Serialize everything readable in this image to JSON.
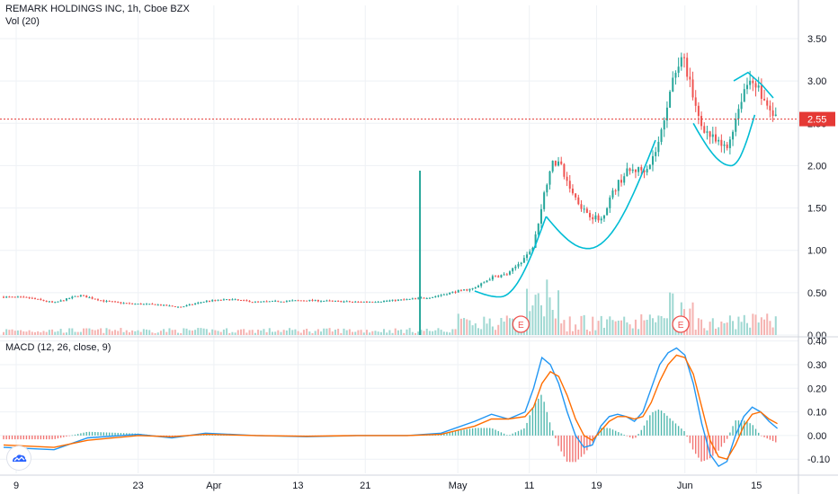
{
  "header": {
    "symbol_line": "REMARK HOLDINGS INC, 1h, Cboe BZX",
    "volume_label": "Vol (20)",
    "macd_label": "MACD (12, 26, close, 9)"
  },
  "colors": {
    "up": "#26a69a",
    "down": "#ef5350",
    "volume_up": "#9fd8d2",
    "volume_down": "#f5b3b1",
    "macd_line": "#2196f3",
    "signal_line": "#ff6d00",
    "pattern": "#00bcd4",
    "price_line": "#e53935",
    "grid": "#eef1f5",
    "axis_text": "#131722"
  },
  "chart_data": [
    {
      "type": "candlestick",
      "title": "REMARK HOLDINGS INC, 1h, Cboe BZX",
      "y_ticks": [
        "3.50",
        "3.00",
        "2.50",
        "2.00",
        "1.50",
        "1.00",
        "0.50",
        "0.00"
      ],
      "ylim": [
        0,
        3.85
      ],
      "current_price": "2.55",
      "x_ticks": [
        "9",
        "23",
        "Apr",
        "13",
        "21",
        "May",
        "11",
        "19",
        "Jun",
        "15"
      ],
      "earnings_markers": [
        "E",
        "E"
      ],
      "daily_closes": [
        {
          "t": 0,
          "c": 0.45
        },
        {
          "t": 3,
          "c": 0.44
        },
        {
          "t": 6,
          "c": 0.38
        },
        {
          "t": 9,
          "c": 0.47
        },
        {
          "t": 12,
          "c": 0.4
        },
        {
          "t": 15,
          "c": 0.37
        },
        {
          "t": 18,
          "c": 0.36
        },
        {
          "t": 21,
          "c": 0.33
        },
        {
          "t": 24,
          "c": 0.4
        },
        {
          "t": 27,
          "c": 0.42
        },
        {
          "t": 30,
          "c": 0.39
        },
        {
          "t": 33,
          "c": 0.4
        },
        {
          "t": 36,
          "c": 0.41
        },
        {
          "t": 39,
          "c": 0.4
        },
        {
          "t": 42,
          "c": 0.39
        },
        {
          "t": 45,
          "c": 0.4
        },
        {
          "t": 48,
          "c": 0.42
        },
        {
          "t": 51,
          "c": 0.45
        },
        {
          "t": 54,
          "c": 0.52
        },
        {
          "t": 56,
          "c": 0.55
        },
        {
          "t": 58,
          "c": 0.68
        },
        {
          "t": 60,
          "c": 0.72
        },
        {
          "t": 62,
          "c": 0.92
        },
        {
          "t": 63,
          "c": 1.05
        },
        {
          "t": 64,
          "c": 1.55
        },
        {
          "t": 65,
          "c": 2.0
        },
        {
          "t": 66,
          "c": 2.05
        },
        {
          "t": 67,
          "c": 1.8
        },
        {
          "t": 68,
          "c": 1.62
        },
        {
          "t": 69,
          "c": 1.48
        },
        {
          "t": 70,
          "c": 1.4
        },
        {
          "t": 71,
          "c": 1.35
        },
        {
          "t": 72,
          "c": 1.6
        },
        {
          "t": 73,
          "c": 1.78
        },
        {
          "t": 74,
          "c": 1.92
        },
        {
          "t": 75,
          "c": 1.95
        },
        {
          "t": 76,
          "c": 1.95
        },
        {
          "t": 77,
          "c": 2.05
        },
        {
          "t": 78,
          "c": 2.3
        },
        {
          "t": 79,
          "c": 2.8
        },
        {
          "t": 80,
          "c": 3.2
        },
        {
          "t": 81,
          "c": 3.25
        },
        {
          "t": 82,
          "c": 2.75
        },
        {
          "t": 83,
          "c": 2.48
        },
        {
          "t": 84,
          "c": 2.35
        },
        {
          "t": 85,
          "c": 2.25
        },
        {
          "t": 86,
          "c": 2.2
        },
        {
          "t": 87,
          "c": 2.55
        },
        {
          "t": 88,
          "c": 2.9
        },
        {
          "t": 89,
          "c": 3.05
        },
        {
          "t": 90,
          "c": 2.85
        },
        {
          "t": 91,
          "c": 2.65
        },
        {
          "t": 92,
          "c": 2.55
        }
      ]
    },
    {
      "type": "line",
      "title": "MACD (12, 26, close, 9)",
      "y_ticks": [
        "0.40",
        "0.30",
        "0.20",
        "0.10",
        "0.00",
        "-0.10"
      ],
      "ylim": [
        -0.16,
        0.41
      ],
      "series": [
        {
          "name": "MACD",
          "points": [
            {
              "t": 0,
              "v": -0.05
            },
            {
              "t": 6,
              "v": -0.06
            },
            {
              "t": 10,
              "v": -0.01
            },
            {
              "t": 16,
              "v": 0.005
            },
            {
              "t": 20,
              "v": -0.01
            },
            {
              "t": 24,
              "v": 0.01
            },
            {
              "t": 30,
              "v": 0.0
            },
            {
              "t": 36,
              "v": -0.005
            },
            {
              "t": 42,
              "v": 0.0
            },
            {
              "t": 48,
              "v": 0.0
            },
            {
              "t": 52,
              "v": 0.01
            },
            {
              "t": 56,
              "v": 0.06
            },
            {
              "t": 58,
              "v": 0.09
            },
            {
              "t": 60,
              "v": 0.07
            },
            {
              "t": 62,
              "v": 0.1
            },
            {
              "t": 63,
              "v": 0.2
            },
            {
              "t": 64,
              "v": 0.33
            },
            {
              "t": 65,
              "v": 0.3
            },
            {
              "t": 66,
              "v": 0.22
            },
            {
              "t": 67,
              "v": 0.1
            },
            {
              "t": 68,
              "v": 0.0
            },
            {
              "t": 69,
              "v": -0.05
            },
            {
              "t": 70,
              "v": -0.04
            },
            {
              "t": 71,
              "v": 0.04
            },
            {
              "t": 72,
              "v": 0.08
            },
            {
              "t": 73,
              "v": 0.09
            },
            {
              "t": 74,
              "v": 0.08
            },
            {
              "t": 75,
              "v": 0.06
            },
            {
              "t": 76,
              "v": 0.1
            },
            {
              "t": 77,
              "v": 0.2
            },
            {
              "t": 78,
              "v": 0.3
            },
            {
              "t": 79,
              "v": 0.35
            },
            {
              "t": 80,
              "v": 0.37
            },
            {
              "t": 81,
              "v": 0.34
            },
            {
              "t": 82,
              "v": 0.22
            },
            {
              "t": 83,
              "v": 0.05
            },
            {
              "t": 84,
              "v": -0.08
            },
            {
              "t": 85,
              "v": -0.13
            },
            {
              "t": 86,
              "v": -0.11
            },
            {
              "t": 87,
              "v": 0.0
            },
            {
              "t": 88,
              "v": 0.08
            },
            {
              "t": 89,
              "v": 0.12
            },
            {
              "t": 90,
              "v": 0.1
            },
            {
              "t": 91,
              "v": 0.06
            },
            {
              "t": 92,
              "v": 0.03
            }
          ]
        },
        {
          "name": "Signal",
          "points": [
            {
              "t": 0,
              "v": -0.04
            },
            {
              "t": 6,
              "v": -0.05
            },
            {
              "t": 10,
              "v": -0.02
            },
            {
              "t": 16,
              "v": 0.0
            },
            {
              "t": 20,
              "v": -0.005
            },
            {
              "t": 24,
              "v": 0.005
            },
            {
              "t": 30,
              "v": 0.0
            },
            {
              "t": 36,
              "v": -0.003
            },
            {
              "t": 42,
              "v": 0.0
            },
            {
              "t": 48,
              "v": 0.0
            },
            {
              "t": 52,
              "v": 0.005
            },
            {
              "t": 56,
              "v": 0.04
            },
            {
              "t": 58,
              "v": 0.07
            },
            {
              "t": 60,
              "v": 0.07
            },
            {
              "t": 62,
              "v": 0.08
            },
            {
              "t": 63,
              "v": 0.12
            },
            {
              "t": 64,
              "v": 0.22
            },
            {
              "t": 65,
              "v": 0.27
            },
            {
              "t": 66,
              "v": 0.25
            },
            {
              "t": 67,
              "v": 0.17
            },
            {
              "t": 68,
              "v": 0.07
            },
            {
              "t": 69,
              "v": 0.0
            },
            {
              "t": 70,
              "v": -0.02
            },
            {
              "t": 71,
              "v": 0.02
            },
            {
              "t": 72,
              "v": 0.06
            },
            {
              "t": 73,
              "v": 0.08
            },
            {
              "t": 74,
              "v": 0.08
            },
            {
              "t": 75,
              "v": 0.07
            },
            {
              "t": 76,
              "v": 0.08
            },
            {
              "t": 77,
              "v": 0.14
            },
            {
              "t": 78,
              "v": 0.23
            },
            {
              "t": 79,
              "v": 0.3
            },
            {
              "t": 80,
              "v": 0.34
            },
            {
              "t": 81,
              "v": 0.33
            },
            {
              "t": 82,
              "v": 0.26
            },
            {
              "t": 83,
              "v": 0.12
            },
            {
              "t": 84,
              "v": -0.02
            },
            {
              "t": 85,
              "v": -0.09
            },
            {
              "t": 86,
              "v": -0.1
            },
            {
              "t": 87,
              "v": -0.04
            },
            {
              "t": 88,
              "v": 0.04
            },
            {
              "t": 89,
              "v": 0.09
            },
            {
              "t": 90,
              "v": 0.1
            },
            {
              "t": 91,
              "v": 0.07
            },
            {
              "t": 92,
              "v": 0.05
            }
          ]
        }
      ]
    }
  ]
}
